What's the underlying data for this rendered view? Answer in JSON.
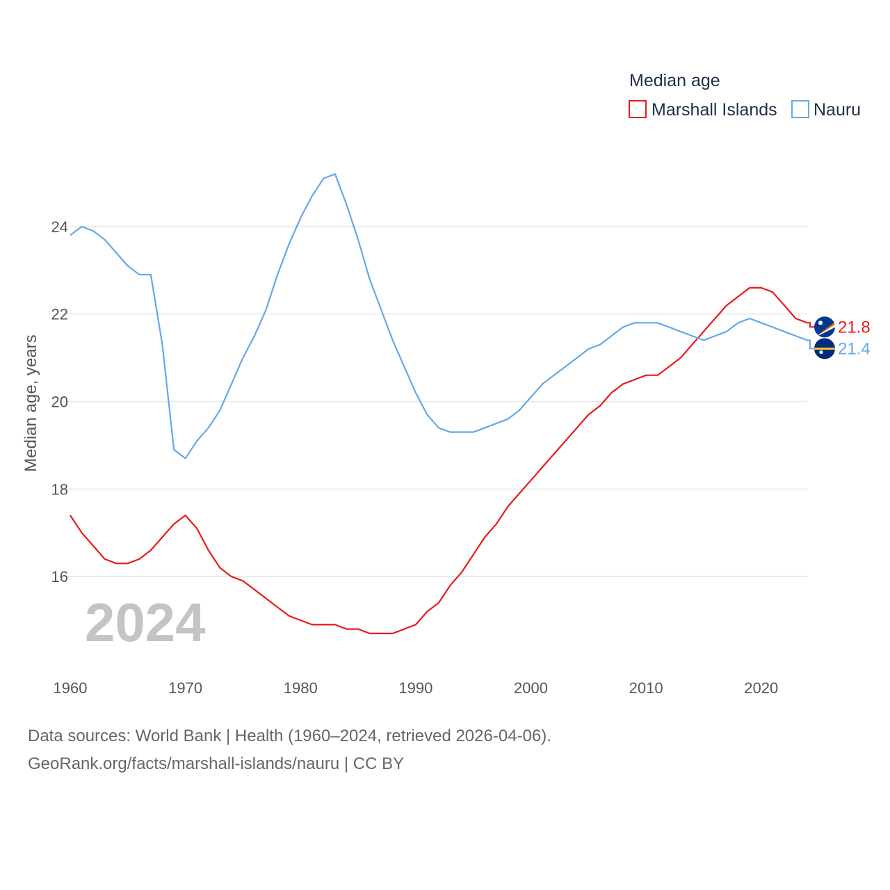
{
  "chart_data": {
    "type": "line",
    "legend_title": "Median age",
    "ylabel": "Median age, years",
    "xlim": [
      1960,
      2024
    ],
    "ylim": [
      14,
      26
    ],
    "y_ticks": [
      16,
      18,
      20,
      22,
      24
    ],
    "x_ticks": [
      1960,
      1970,
      1980,
      1990,
      2000,
      2010,
      2020
    ],
    "grid": true,
    "legend_position": "top-right",
    "year_label": "2024",
    "series": [
      {
        "name": "Marshall Islands",
        "color": "#e8191c",
        "end_label": "21.8",
        "flag_icon": "marshall-islands-flag-icon",
        "x": [
          1960,
          1961,
          1962,
          1963,
          1964,
          1965,
          1966,
          1967,
          1968,
          1969,
          1970,
          1971,
          1972,
          1973,
          1974,
          1975,
          1976,
          1977,
          1978,
          1979,
          1980,
          1981,
          1982,
          1983,
          1984,
          1985,
          1986,
          1987,
          1988,
          1989,
          1990,
          1991,
          1992,
          1993,
          1994,
          1995,
          1996,
          1997,
          1998,
          1999,
          2000,
          2001,
          2002,
          2003,
          2004,
          2005,
          2006,
          2007,
          2008,
          2009,
          2010,
          2011,
          2012,
          2013,
          2014,
          2015,
          2016,
          2017,
          2018,
          2019,
          2020,
          2021,
          2022,
          2023,
          2024
        ],
        "values": [
          17.4,
          17.0,
          16.7,
          16.4,
          16.3,
          16.3,
          16.4,
          16.6,
          16.9,
          17.2,
          17.4,
          17.1,
          16.6,
          16.2,
          16.0,
          15.9,
          15.7,
          15.5,
          15.3,
          15.1,
          15.0,
          14.9,
          14.9,
          14.9,
          14.8,
          14.8,
          14.7,
          14.7,
          14.7,
          14.8,
          14.9,
          15.2,
          15.4,
          15.8,
          16.1,
          16.5,
          16.9,
          17.2,
          17.6,
          17.9,
          18.2,
          18.5,
          18.8,
          19.1,
          19.4,
          19.7,
          19.9,
          20.2,
          20.4,
          20.5,
          20.6,
          20.6,
          20.8,
          21.0,
          21.3,
          21.6,
          21.9,
          22.2,
          22.4,
          22.6,
          22.6,
          22.5,
          22.2,
          21.9,
          21.8
        ]
      },
      {
        "name": "Nauru",
        "color": "#64a8e8",
        "end_label": "21.4",
        "flag_icon": "nauru-flag-icon",
        "x": [
          1960,
          1961,
          1962,
          1963,
          1964,
          1965,
          1966,
          1967,
          1968,
          1969,
          1970,
          1971,
          1972,
          1973,
          1974,
          1975,
          1976,
          1977,
          1978,
          1979,
          1980,
          1981,
          1982,
          1983,
          1984,
          1985,
          1986,
          1987,
          1988,
          1989,
          1990,
          1991,
          1992,
          1993,
          1994,
          1995,
          1996,
          1997,
          1998,
          1999,
          2000,
          2001,
          2002,
          2003,
          2004,
          2005,
          2006,
          2007,
          2008,
          2009,
          2010,
          2011,
          2012,
          2013,
          2014,
          2015,
          2016,
          2017,
          2018,
          2019,
          2020,
          2021,
          2022,
          2023,
          2024
        ],
        "values": [
          23.8,
          24.0,
          23.9,
          23.7,
          23.4,
          23.1,
          22.9,
          22.9,
          21.3,
          18.9,
          18.7,
          19.1,
          19.4,
          19.8,
          20.4,
          21.0,
          21.5,
          22.1,
          22.9,
          23.6,
          24.2,
          24.7,
          25.1,
          25.2,
          24.5,
          23.7,
          22.8,
          22.1,
          21.4,
          20.8,
          20.2,
          19.7,
          19.4,
          19.3,
          19.3,
          19.3,
          19.4,
          19.5,
          19.6,
          19.8,
          20.1,
          20.4,
          20.6,
          20.8,
          21.0,
          21.2,
          21.3,
          21.5,
          21.7,
          21.8,
          21.8,
          21.8,
          21.7,
          21.6,
          21.5,
          21.4,
          21.5,
          21.6,
          21.8,
          21.9,
          21.8,
          21.7,
          21.6,
          21.5,
          21.4
        ]
      }
    ]
  },
  "footer": {
    "source_line": "Data sources: World Bank | Health (1960–2024, retrieved 2026-04-06).",
    "url_line": "GeoRank.org/facts/marshall-islands/nauru | CC BY"
  }
}
